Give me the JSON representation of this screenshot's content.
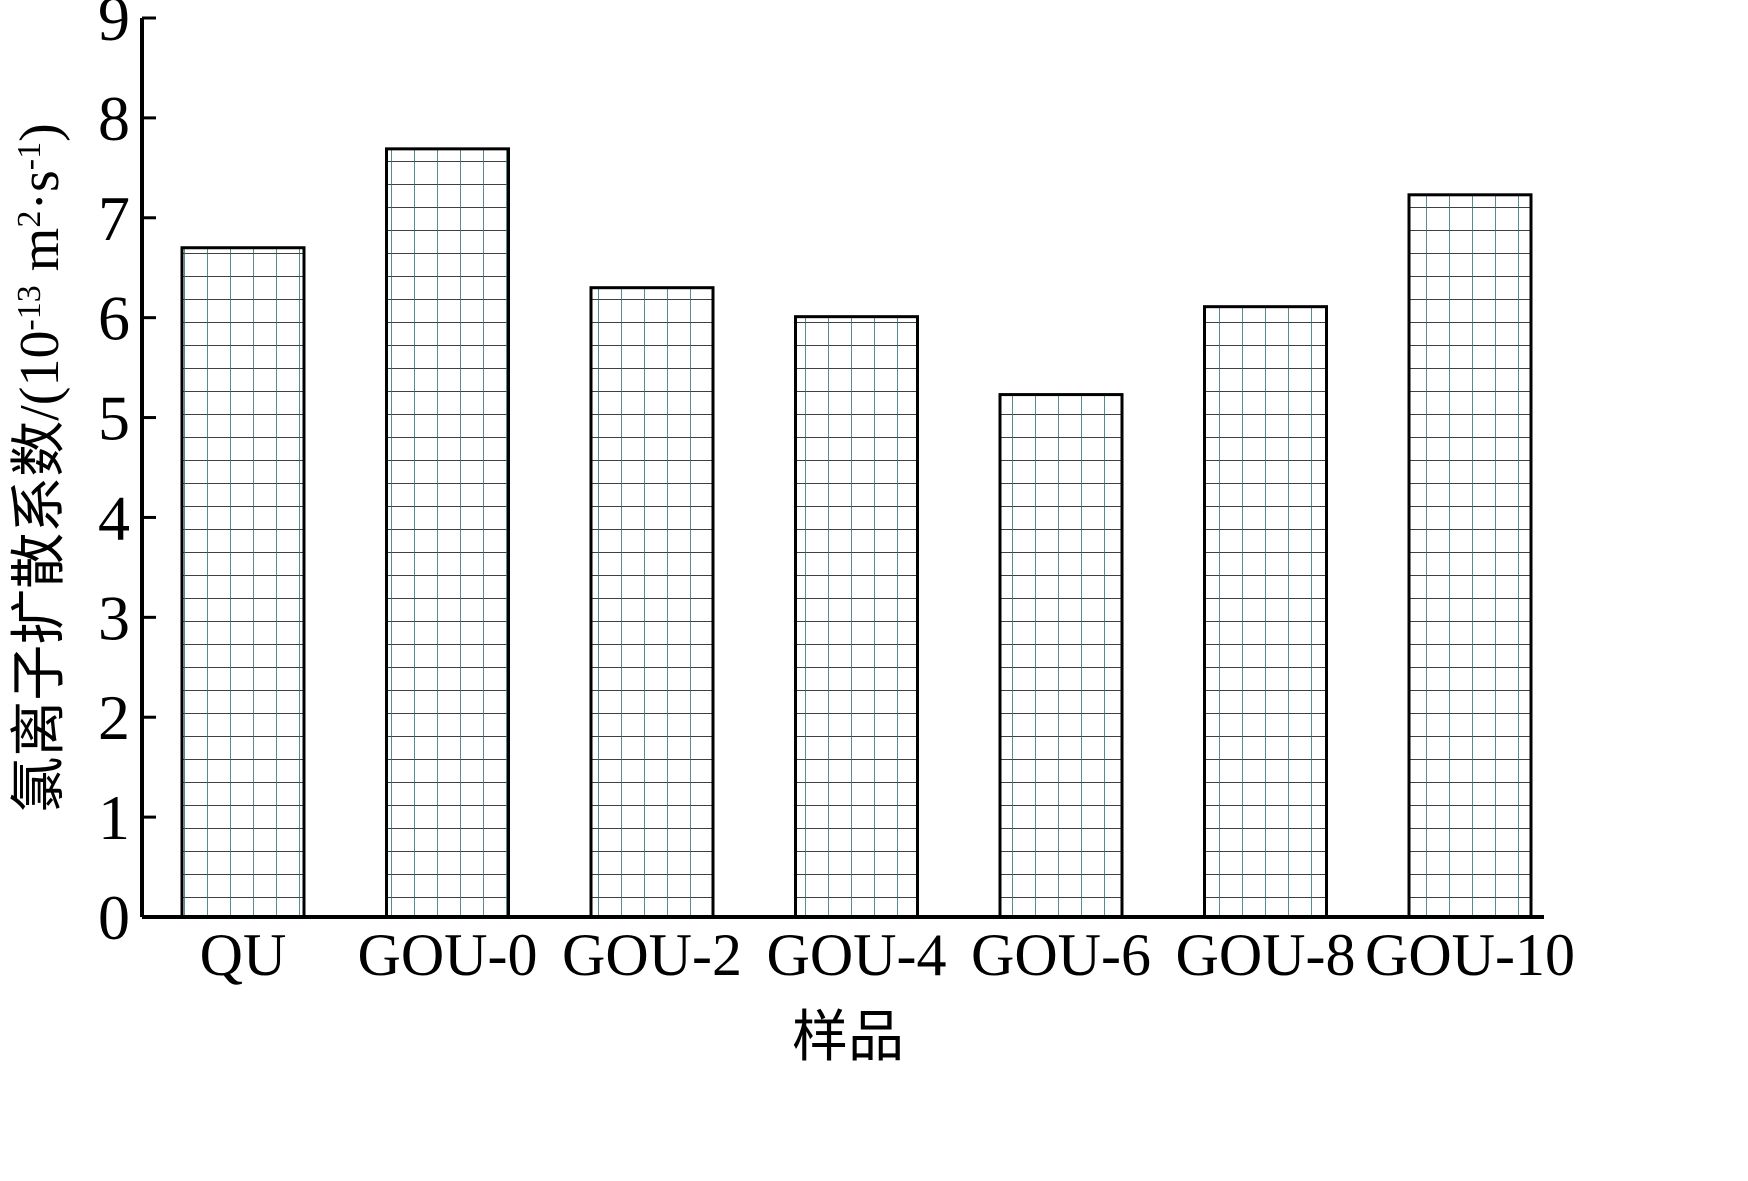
{
  "chart_data": {
    "type": "bar",
    "title": "",
    "xlabel": "样品",
    "ylabel": "氯离子扩散系数/(10",
    "ylabel_exp1": "-13",
    "ylabel_mid": " m",
    "ylabel_exp2": "2",
    "ylabel_mid2": "·s",
    "ylabel_exp3": "-1",
    "ylabel_end": ")",
    "categories": [
      "QU",
      "GOU-0",
      "GOU-2",
      "GOU-4",
      "GOU-6",
      "GOU-8",
      "GOU-10"
    ],
    "values": [
      6.7,
      7.69,
      6.3,
      6.01,
      5.23,
      6.11,
      7.23
    ],
    "ylim": [
      0,
      9
    ],
    "yticks": [
      0,
      1,
      2,
      3,
      4,
      5,
      6,
      7,
      8,
      9
    ],
    "grid": false,
    "legend": "none",
    "bar_fill": "#ffffff",
    "bar_hatch_color": "#000000",
    "bar_hatch_accent": "#2a6f6f"
  }
}
